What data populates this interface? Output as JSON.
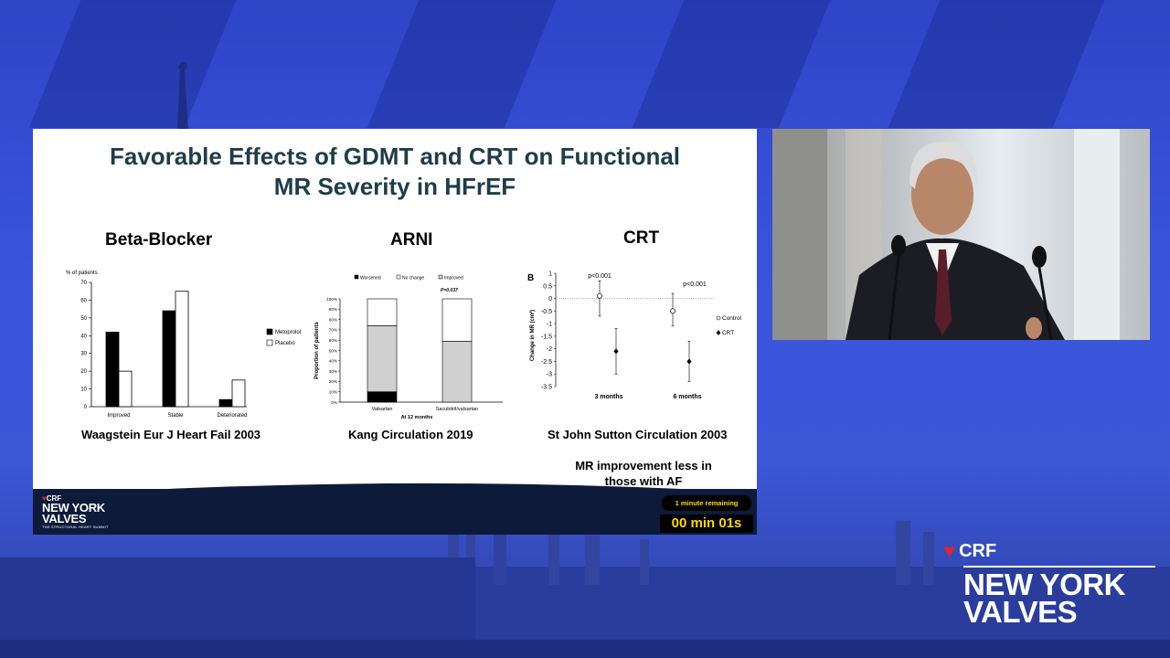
{
  "slide": {
    "title_line1": "Favorable Effects of GDMT and CRT on Functional",
    "title_line2": "MR Severity in HFrEF",
    "panels": [
      {
        "heading": "Beta-Blocker",
        "citation": "Waagstein Eur J Heart Fail 2003"
      },
      {
        "heading": "ARNI",
        "citation": "Kang Circulation 2019"
      },
      {
        "heading": "CRT",
        "citation": "St John Sutton Circulation 2003",
        "note_line1": "MR improvement less in",
        "note_line2": "those with AF"
      }
    ],
    "footer": {
      "crf": "CRF",
      "ny_line1": "NEW YORK",
      "ny_line2": "VALVES",
      "tagline": "THE STRUCTURAL HEART SUMMIT"
    },
    "timer": {
      "remaining": "1 minute remaining",
      "count": "00 min 01s"
    }
  },
  "brand": {
    "crf": "CRF",
    "ny_line1": "NEW YORK",
    "ny_line2": "VALVES"
  },
  "colors": {
    "title": "#1f3d4a",
    "timer_text": "#ffd700",
    "accent_red": "#d6263a"
  },
  "chart_data": [
    {
      "type": "bar",
      "ylabel": "% of patients",
      "ylim": [
        0,
        70
      ],
      "yticks": [
        "0",
        "10",
        "20",
        "30",
        "40",
        "50",
        "60",
        "70"
      ],
      "categories": [
        "Improved",
        "Stable",
        "Deteriorated"
      ],
      "series": [
        {
          "name": "Metoprolol",
          "color": "#000000",
          "values": [
            42,
            54,
            4
          ]
        },
        {
          "name": "Placebo",
          "color": "#ffffff",
          "values": [
            20,
            65,
            15
          ]
        }
      ],
      "legend": "right"
    },
    {
      "type": "bar",
      "stacked": true,
      "ylabel": "Proportion of patients",
      "xlabel": "At 12 months",
      "ylim": [
        0,
        100
      ],
      "yticks": [
        "0%",
        "10%",
        "20%",
        "30%",
        "40%",
        "50%",
        "60%",
        "70%",
        "80%",
        "90%",
        "100%"
      ],
      "categories": [
        "Valsartan",
        "Sacubitril/valsartan"
      ],
      "annotation": "P=0.037",
      "series": [
        {
          "name": "Worsened",
          "color": "#000000",
          "values": [
            10,
            0
          ]
        },
        {
          "name": "No change",
          "color": "#ffffff",
          "values": [
            0,
            0
          ]
        },
        {
          "name": "Improved",
          "color": "#d0d0d0",
          "values": [
            64,
            59
          ]
        },
        {
          "name": "",
          "color": "#ffffff",
          "values": [
            26,
            41
          ]
        }
      ],
      "legend": "top"
    },
    {
      "type": "scatter",
      "panel_label": "B",
      "ylabel": "Change in MR (cm²)",
      "ylim": [
        -3.5,
        1
      ],
      "yticks": [
        "1",
        "0.5",
        "0",
        "-0.5",
        "-1",
        "-1.5",
        "-2",
        "-2.5",
        "-3",
        "-3.5"
      ],
      "categories": [
        "3 months",
        "6 months"
      ],
      "annotations": [
        "p<0.001",
        "p<0.001"
      ],
      "series": [
        {
          "name": "Control",
          "marker": "open-circle",
          "values": [
            0.1,
            -0.5
          ],
          "ci_low": [
            -0.7,
            -1.1
          ],
          "ci_high": [
            0.7,
            0.2
          ]
        },
        {
          "name": "CRT",
          "marker": "filled-diamond",
          "values": [
            -2.1,
            -2.5
          ],
          "ci_low": [
            -3.0,
            -3.3
          ],
          "ci_high": [
            -1.2,
            -1.7
          ]
        }
      ],
      "legend": "right"
    }
  ]
}
